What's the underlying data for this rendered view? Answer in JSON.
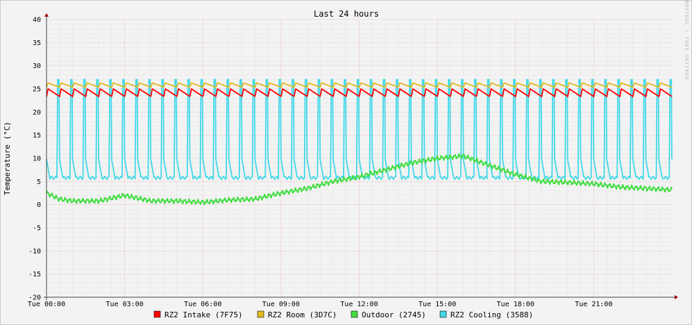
{
  "chart_data": {
    "type": "line",
    "title": "Last 24 hours",
    "ylabel": "Temperature (°C)",
    "watermark": "RRDTOOL / TOBI OETIKER",
    "ylim": [
      -20,
      40
    ],
    "yticks": [
      40,
      35,
      30,
      25,
      20,
      15,
      10,
      5,
      0,
      -5,
      -10,
      -15,
      -20
    ],
    "x_tick_labels": [
      "Tue 00:00",
      "Tue 03:00",
      "Tue 06:00",
      "Tue 09:00",
      "Tue 12:00",
      "Tue 15:00",
      "Tue 18:00",
      "Tue 21:00"
    ],
    "x_tick_hours": [
      0,
      3,
      6,
      9,
      12,
      15,
      18,
      21
    ],
    "x_range_hours": [
      0,
      24
    ],
    "grid": true,
    "legend_position": "bottom",
    "series": [
      {
        "name": "RZ2 Intake (7F75)",
        "color": "#ff0000",
        "pattern": "sawtooth",
        "low": 23.3,
        "high": 25.0,
        "cycle_hours": 0.5
      },
      {
        "name": "RZ2 Room (3D7C)",
        "color": "#e6b820",
        "pattern": "sawtooth",
        "low": 25.3,
        "high": 26.3,
        "cycle_hours": 0.5
      },
      {
        "name": "Outdoor (2745)",
        "color": "#40dd40",
        "pattern": "curve",
        "x": [
          0,
          0.5,
          1,
          2,
          3,
          4,
          5,
          6,
          7,
          8,
          9,
          10,
          11,
          12,
          13,
          14,
          15,
          16,
          17,
          18,
          19,
          20,
          21,
          22,
          23,
          24
        ],
        "y": [
          2.5,
          1.2,
          0.8,
          0.8,
          2.0,
          0.8,
          0.8,
          0.5,
          1.0,
          1.2,
          2.5,
          3.5,
          5.0,
          6.0,
          7.5,
          9.0,
          10.0,
          10.5,
          8.5,
          6.5,
          5.0,
          4.8,
          4.5,
          3.8,
          3.5,
          3.2
        ]
      },
      {
        "name": "RZ2 Cooling (3588)",
        "color": "#40d8e8",
        "pattern": "spikes",
        "low": 5.8,
        "high": 27.0,
        "cycle_hours": 0.5
      }
    ]
  },
  "legend": [
    {
      "label": "RZ2 Intake (7F75)",
      "color": "#ff0000"
    },
    {
      "label": "RZ2 Room (3D7C)",
      "color": "#e6b820"
    },
    {
      "label": "Outdoor (2745)",
      "color": "#40dd40"
    },
    {
      "label": "RZ2 Cooling (3588)",
      "color": "#40d8e8"
    }
  ]
}
